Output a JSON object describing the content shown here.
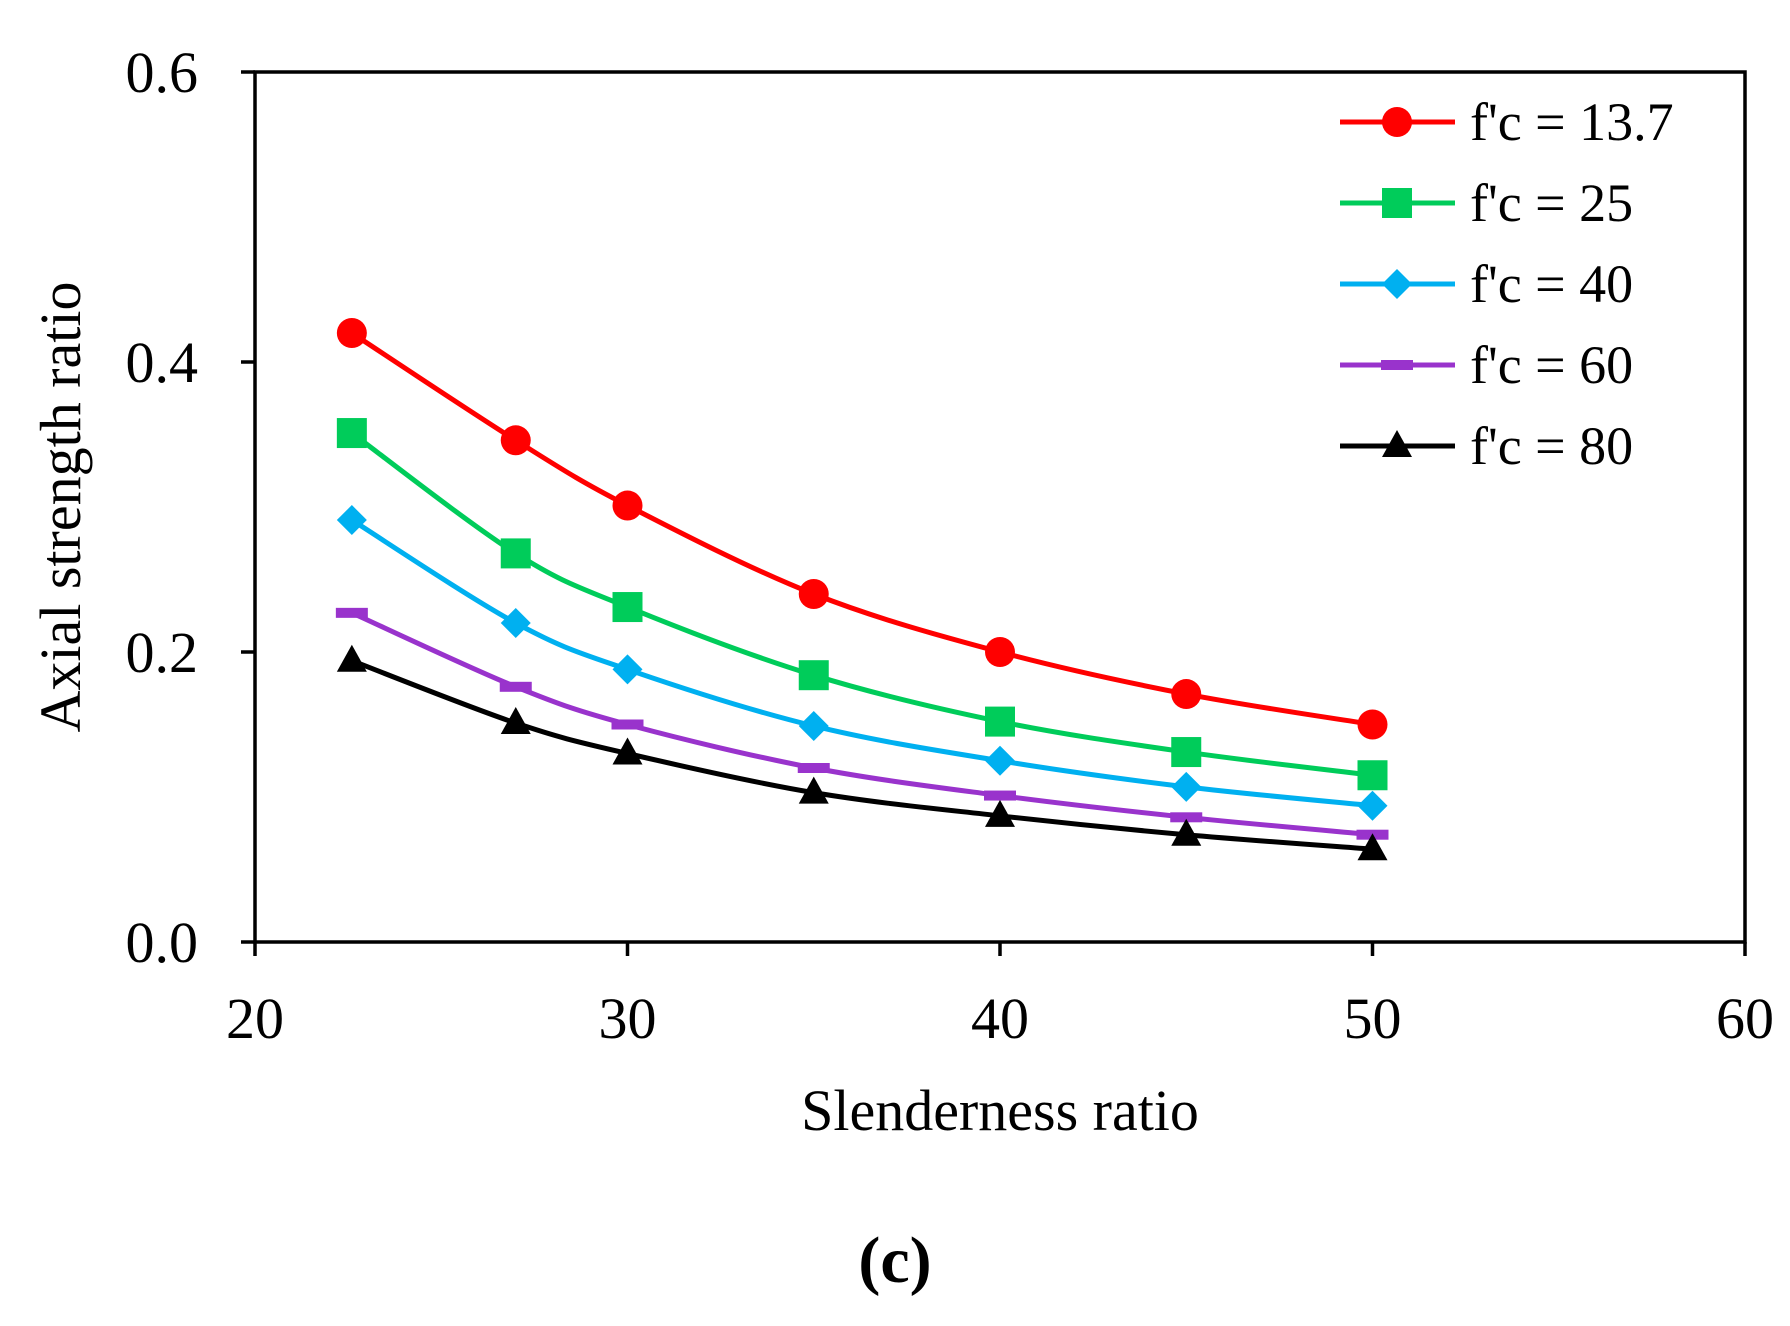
{
  "chart_data": {
    "type": "line",
    "panel_label": "(c)",
    "xlabel": "Slenderness ratio",
    "ylabel": "Axial strength ratio",
    "xlim": [
      20,
      60
    ],
    "ylim": [
      0.0,
      0.6
    ],
    "xticks": [
      20,
      30,
      40,
      50,
      60
    ],
    "yticks": [
      0.0,
      0.2,
      0.4,
      0.6
    ],
    "xtick_labels": [
      "20",
      "30",
      "40",
      "50",
      "60"
    ],
    "ytick_labels": [
      "0.0",
      "0.2",
      "0.4",
      "0.6"
    ],
    "grid": false,
    "legend_position": "top-right",
    "x": [
      22.6,
      27,
      30,
      35,
      40,
      45,
      50
    ],
    "series": [
      {
        "name": "f'c = 13.7",
        "color": "#ff0000",
        "marker": "circle",
        "values": [
          0.42,
          0.346,
          0.301,
          0.24,
          0.2,
          0.171,
          0.15
        ]
      },
      {
        "name": "f'c = 25",
        "color": "#00cc5a",
        "marker": "square",
        "values": [
          0.351,
          0.268,
          0.231,
          0.184,
          0.152,
          0.131,
          0.115
        ]
      },
      {
        "name": "f'c = 40",
        "color": "#00b0f0",
        "marker": "diamond",
        "values": [
          0.291,
          0.22,
          0.188,
          0.149,
          0.125,
          0.107,
          0.094
        ]
      },
      {
        "name": "f'c = 60",
        "color": "#9933cc",
        "marker": "dash",
        "values": [
          0.227,
          0.176,
          0.15,
          0.12,
          0.101,
          0.086,
          0.074
        ]
      },
      {
        "name": "f'c = 80",
        "color": "#000000",
        "marker": "triangle",
        "values": [
          0.194,
          0.151,
          0.13,
          0.103,
          0.087,
          0.074,
          0.064
        ]
      }
    ]
  }
}
